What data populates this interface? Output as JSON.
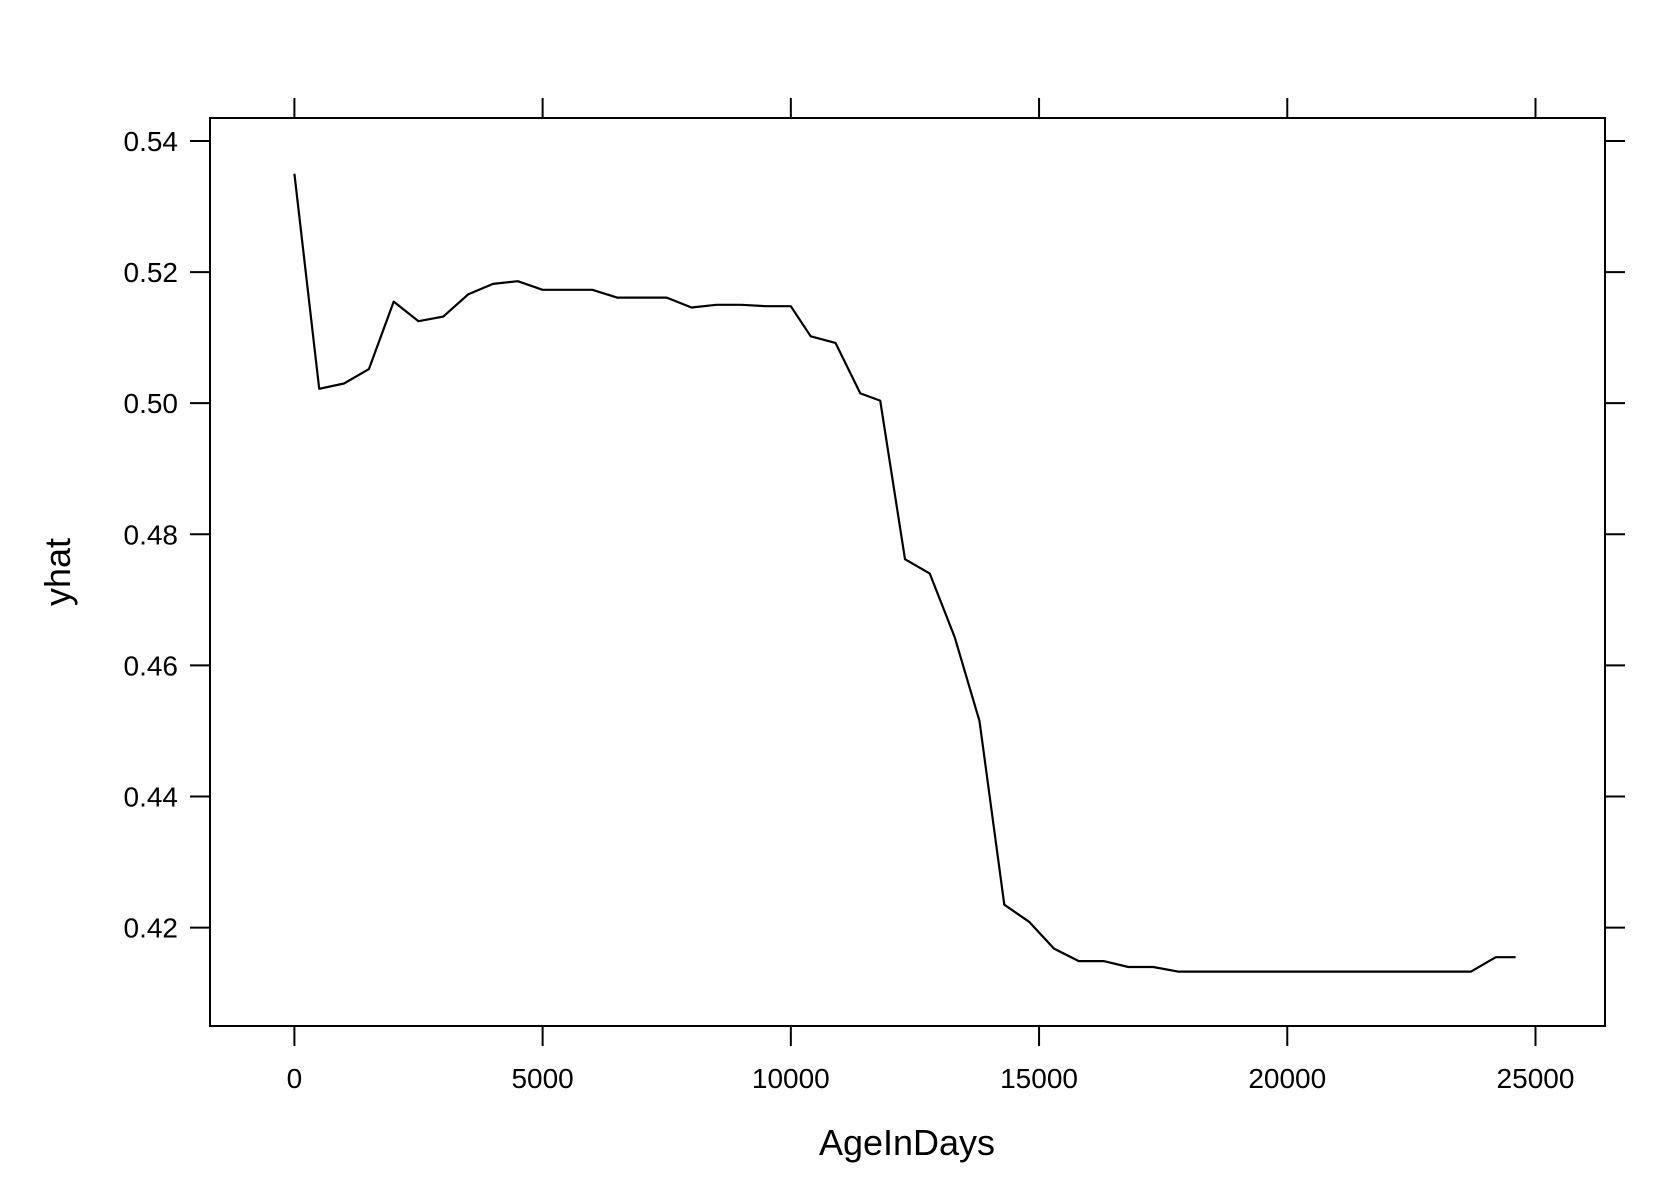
{
  "chart_data": {
    "type": "line",
    "title": "",
    "xlabel": "AgeInDays",
    "ylabel": "yhat",
    "xlim": [
      -1700,
      26400
    ],
    "ylim": [
      0.405,
      0.5435
    ],
    "xticks": [
      0,
      5000,
      10000,
      15000,
      20000,
      25000
    ],
    "xtick_labels": [
      "0",
      "5000",
      "10000",
      "15000",
      "20000",
      "25000"
    ],
    "yticks": [
      0.42,
      0.44,
      0.46,
      0.48,
      0.5,
      0.52,
      0.54
    ],
    "ytick_labels": [
      "0.42",
      "0.44",
      "0.46",
      "0.48",
      "0.50",
      "0.52",
      "0.54"
    ],
    "grid": false,
    "line_color": "#000000",
    "series": [
      {
        "x": [
          0,
          500,
          1000,
          1500,
          2000,
          2500,
          3000,
          3500,
          4000,
          4500,
          5000,
          5500,
          6000,
          6500,
          7000,
          7500,
          8000,
          8500,
          9000,
          9500,
          10000,
          10400,
          10900,
          11400,
          11800,
          12300,
          12800,
          13300,
          13800,
          14300,
          14800,
          15300,
          15800,
          16300,
          16800,
          17300,
          17800,
          18300,
          18800,
          19300,
          19800,
          20300,
          20800,
          21300,
          21800,
          22300,
          22800,
          23300,
          23700,
          24200,
          24600
        ],
        "y": [
          0.535,
          0.5022,
          0.503,
          0.5052,
          0.5155,
          0.5125,
          0.5132,
          0.5166,
          0.5182,
          0.5186,
          0.5173,
          0.5173,
          0.5173,
          0.5161,
          0.5161,
          0.5161,
          0.5146,
          0.515,
          0.515,
          0.5148,
          0.5148,
          0.5102,
          0.5092,
          0.5015,
          0.5004,
          0.4762,
          0.474,
          0.4643,
          0.4515,
          0.4235,
          0.4209,
          0.4168,
          0.4149,
          0.4149,
          0.414,
          0.414,
          0.4133,
          0.4133,
          0.4133,
          0.4133,
          0.4133,
          0.4133,
          0.4133,
          0.4133,
          0.4133,
          0.4133,
          0.4133,
          0.4133,
          0.4133,
          0.4155,
          0.4155
        ]
      }
    ]
  }
}
